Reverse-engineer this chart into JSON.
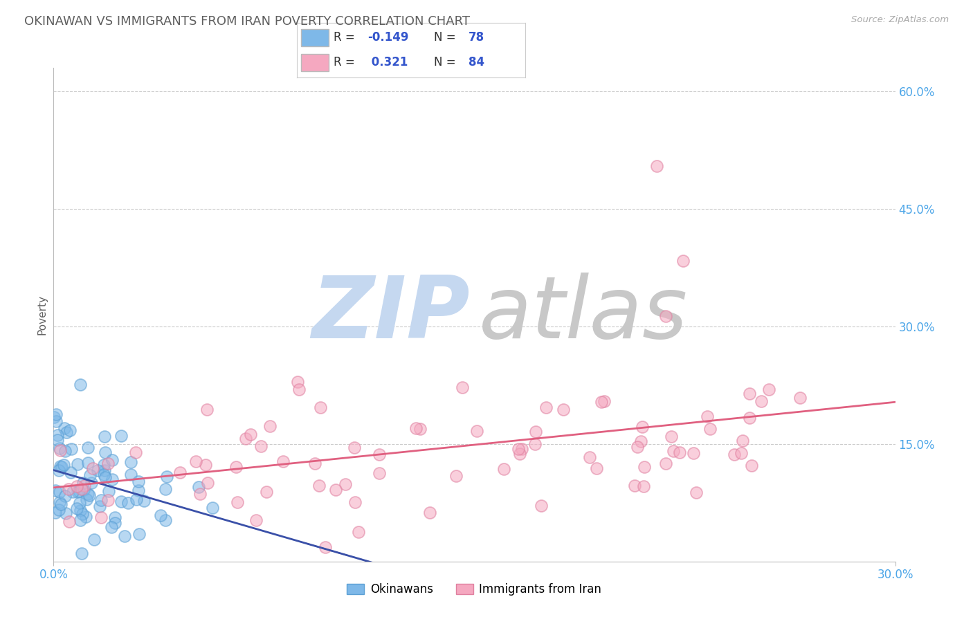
{
  "title": "OKINAWAN VS IMMIGRANTS FROM IRAN POVERTY CORRELATION CHART",
  "source": "Source: ZipAtlas.com",
  "ylabel": "Poverty",
  "xlim": [
    0.0,
    0.3
  ],
  "ylim": [
    0.0,
    0.63
  ],
  "xtick_positions": [
    0.0,
    0.3
  ],
  "xticklabels": [
    "0.0%",
    "30.0%"
  ],
  "ytick_values": [
    0.15,
    0.3,
    0.45,
    0.6
  ],
  "yticklabels": [
    "15.0%",
    "30.0%",
    "45.0%",
    "60.0%"
  ],
  "blue_color": "#7eb8e8",
  "blue_edge": "#5a9fd4",
  "pink_color": "#f5a8c0",
  "pink_edge": "#e080a0",
  "blue_line_color": "#3a50a8",
  "pink_line_color": "#e06080",
  "blue_line_style": "solid",
  "blue_line_ext_style": "dashed",
  "watermark_zip_color": "#c5d8f0",
  "watermark_atlas_color": "#c8c8c8",
  "background_color": "#ffffff",
  "grid_color": "#cccccc",
  "title_color": "#606060",
  "axis_label_color": "#606060",
  "tick_color": "#4da6e8",
  "legend_label_blue": "Okinawans",
  "legend_label_pink": "Immigrants from Iran",
  "legend_R_color": "#4169e1",
  "legend_N_color": "#4169e1",
  "blue_R": -0.149,
  "blue_N": 78,
  "pink_R": 0.321,
  "pink_N": 84
}
